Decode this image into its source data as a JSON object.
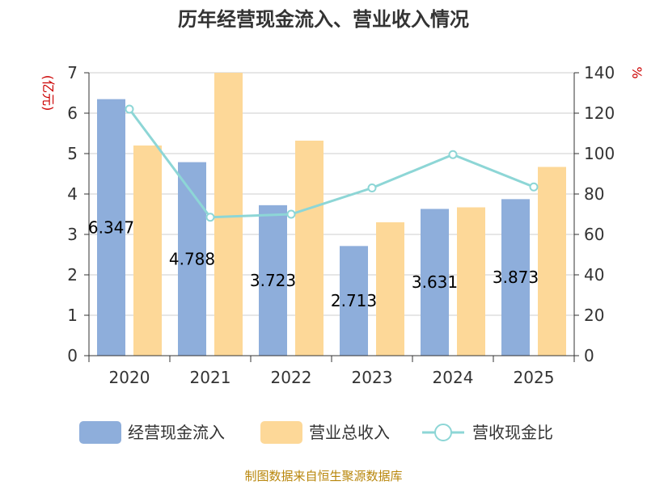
{
  "chart_data": {
    "type": "bar",
    "title": "历年经营现金流入、营业收入情况",
    "categories": [
      "2020",
      "2021",
      "2022",
      "2023",
      "2024",
      "2025"
    ],
    "y_left": {
      "unit": "(亿元)",
      "min": 0,
      "max": 7,
      "ticks": [
        "0",
        "1",
        "2",
        "3",
        "4",
        "5",
        "6",
        "7"
      ]
    },
    "y_right": {
      "unit": "%",
      "min": 0,
      "max": 140,
      "ticks": [
        "0",
        "20",
        "40",
        "60",
        "80",
        "100",
        "120",
        "140"
      ]
    },
    "series": [
      {
        "name": "经营现金流入",
        "type": "bar",
        "axis": "left",
        "color": "#8eaedb",
        "values": [
          6.347,
          4.788,
          3.723,
          2.713,
          3.631,
          3.873
        ],
        "labels": [
          "6.347",
          "4.788",
          "3.723",
          "2.713",
          "3.631",
          "3.873"
        ]
      },
      {
        "name": "营业总收入",
        "type": "bar",
        "axis": "left",
        "color": "#fdd898",
        "values": [
          5.2,
          7.0,
          5.32,
          3.3,
          3.67,
          4.67
        ]
      },
      {
        "name": "营收现金比",
        "type": "line",
        "axis": "right",
        "color": "#8dd6d6",
        "values": [
          122,
          68.5,
          70,
          83,
          99.5,
          83.5
        ]
      }
    ],
    "grid": true,
    "legend_position": "bottom"
  },
  "source": "制图数据来自恒生聚源数据库"
}
